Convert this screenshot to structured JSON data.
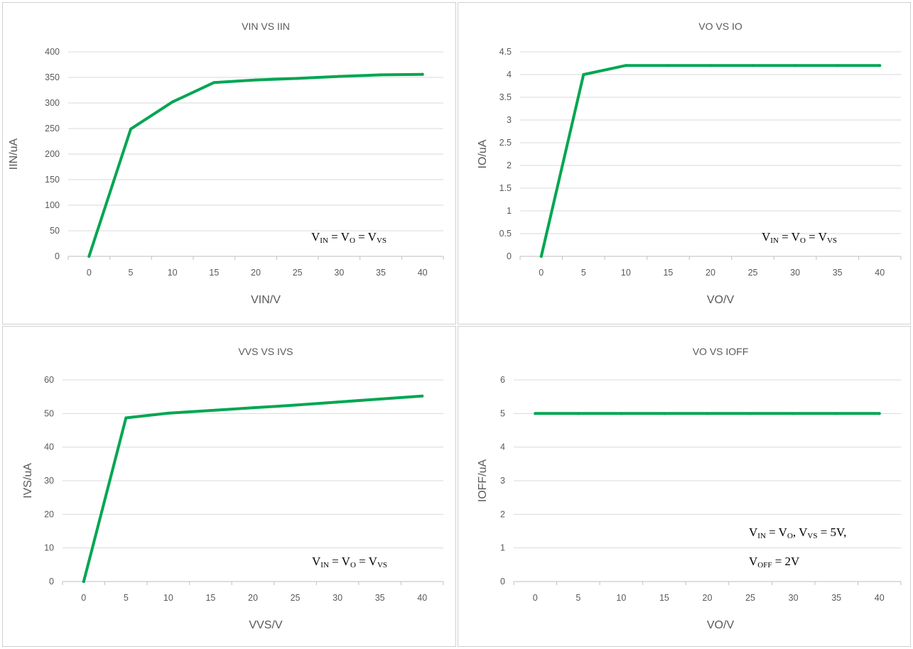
{
  "style": {
    "line_color": "#00A651",
    "grid_color": "#d9d9d9",
    "text_color": "#595959"
  },
  "chart_data": [
    {
      "id": "c1",
      "type": "line",
      "title": "VIN VS IIN",
      "xlabel": "VIN/V",
      "ylabel": "IIN/uA",
      "x_ticks": [
        "0",
        "5",
        "10",
        "15",
        "20",
        "25",
        "30",
        "35",
        "40"
      ],
      "y_ticks": [
        "0",
        "50",
        "100",
        "150",
        "200",
        "250",
        "300",
        "350",
        "400"
      ],
      "xlim": [
        0,
        40
      ],
      "ylim": [
        0,
        400
      ],
      "series": [
        {
          "x": [
            0,
            5,
            10,
            15,
            20,
            25,
            30,
            35,
            40
          ],
          "y": [
            0,
            249,
            302,
            340,
            345,
            348,
            352,
            355,
            356
          ]
        }
      ],
      "annotation": [
        {
          "parts": [
            [
              "V",
              ""
            ],
            [
              "IN",
              "sub"
            ],
            [
              " = V",
              ""
            ],
            [
              "O",
              "sub"
            ],
            [
              " = V",
              ""
            ],
            [
              "VS",
              "sub"
            ]
          ]
        }
      ]
    },
    {
      "id": "c2",
      "type": "line",
      "title": "VO VS IO",
      "xlabel": "VO/V",
      "ylabel": "IO/uA",
      "x_ticks": [
        "0",
        "5",
        "10",
        "15",
        "20",
        "25",
        "30",
        "35",
        "40"
      ],
      "y_ticks": [
        "0",
        "0.5",
        "1",
        "1.5",
        "2",
        "2.5",
        "3",
        "3.5",
        "4",
        "4.5"
      ],
      "xlim": [
        0,
        40
      ],
      "ylim": [
        0,
        4.5
      ],
      "series": [
        {
          "x": [
            0,
            5,
            10,
            15,
            20,
            25,
            30,
            35,
            40
          ],
          "y": [
            0,
            4.0,
            4.2,
            4.2,
            4.2,
            4.2,
            4.2,
            4.2,
            4.2
          ]
        }
      ],
      "annotation": [
        {
          "parts": [
            [
              "V",
              ""
            ],
            [
              "IN",
              "sub"
            ],
            [
              " = V",
              ""
            ],
            [
              "O",
              "sub"
            ],
            [
              " = V",
              ""
            ],
            [
              "VS",
              "sub"
            ]
          ]
        }
      ]
    },
    {
      "id": "c3",
      "type": "line",
      "title": "VVS VS IVS",
      "xlabel": "VVS/V",
      "ylabel": "IVS/uA",
      "x_ticks": [
        "0",
        "5",
        "10",
        "15",
        "20",
        "25",
        "30",
        "35",
        "40"
      ],
      "y_ticks": [
        "0",
        "10",
        "20",
        "30",
        "40",
        "50",
        "60"
      ],
      "xlim": [
        0,
        40
      ],
      "ylim": [
        0,
        60
      ],
      "series": [
        {
          "x": [
            0,
            5,
            10,
            15,
            20,
            25,
            30,
            35,
            40
          ],
          "y": [
            0,
            48.7,
            50.1,
            50.9,
            51.7,
            52.5,
            53.4,
            54.3,
            55.2
          ]
        }
      ],
      "annotation": [
        {
          "parts": [
            [
              "V",
              ""
            ],
            [
              "IN",
              "sub"
            ],
            [
              " = V",
              ""
            ],
            [
              "O",
              "sub"
            ],
            [
              " = V",
              ""
            ],
            [
              "VS",
              "sub"
            ]
          ]
        }
      ]
    },
    {
      "id": "c4",
      "type": "line",
      "title": "VO VS IOFF",
      "xlabel": "VO/V",
      "ylabel": "IOFF/uA",
      "x_ticks": [
        "0",
        "5",
        "10",
        "15",
        "20",
        "25",
        "30",
        "35",
        "40"
      ],
      "y_ticks": [
        "0",
        "1",
        "2",
        "3",
        "4",
        "5",
        "6"
      ],
      "xlim": [
        0,
        40
      ],
      "ylim": [
        0,
        6
      ],
      "series": [
        {
          "x": [
            0,
            5,
            10,
            15,
            20,
            25,
            30,
            35,
            40
          ],
          "y": [
            5,
            5,
            5,
            5,
            5,
            5,
            5,
            5,
            5
          ]
        }
      ],
      "annotation": [
        {
          "parts": [
            [
              "V",
              ""
            ],
            [
              "IN",
              "sub"
            ],
            [
              " = V",
              ""
            ],
            [
              "O",
              "sub"
            ],
            [
              ", V",
              ""
            ],
            [
              "VS",
              "sub"
            ],
            [
              " = 5V,",
              ""
            ]
          ]
        },
        {
          "parts": [
            [
              "V",
              ""
            ],
            [
              "OFF",
              "sub"
            ],
            [
              " = 2V",
              ""
            ]
          ]
        }
      ]
    }
  ]
}
